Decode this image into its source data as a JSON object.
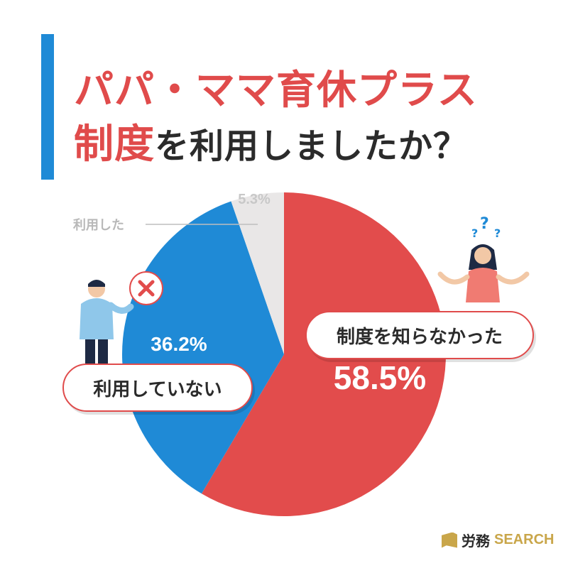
{
  "title": {
    "line1": "パパ・ママ育休プラス",
    "line2_highlight": "制度",
    "line2_rest": "を利用しましたか？"
  },
  "chart_data": {
    "type": "pie",
    "start_angle_deg": 0,
    "direction": "clockwise",
    "slices": [
      {
        "label": "制度を知らなかった",
        "value": 58.5,
        "display": "58.5%",
        "color": "#e24c4c"
      },
      {
        "label": "利用していない",
        "value": 36.2,
        "display": "36.2%",
        "color": "#1f8ad6"
      },
      {
        "label": "利用した",
        "value": 5.3,
        "display": "5.3%",
        "color": "#e9e7e7"
      }
    ]
  },
  "labels": {
    "used": "利用した",
    "not_used": "利用していない",
    "unaware": "制度を知らなかった"
  },
  "logo": {
    "kanji": "労務",
    "search": "SEARCH"
  },
  "colors": {
    "accent_red": "#e24c4c",
    "accent_blue": "#1f8ad6",
    "gray": "#e9e7e7",
    "logo_gold": "#c9a64a"
  }
}
